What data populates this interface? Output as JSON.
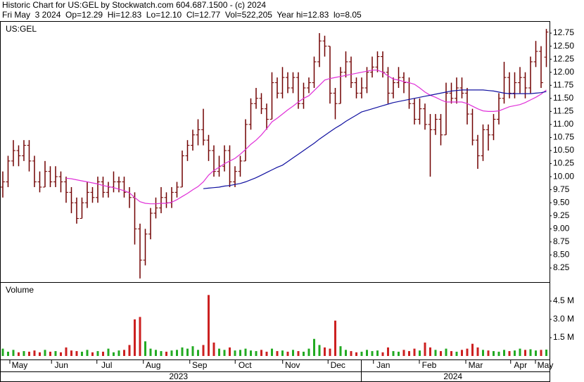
{
  "header": {
    "title": "Historic Chart for US:GEL by Stockwatch.com 604.687.1500 - (c) 2024",
    "info": "Fri May  3 2024  Op=12.29  Hi=12.83  Lo=12.10  Cl=12.77  Vol=522,205  Year hi=12.83  lo=8.05"
  },
  "chart_data": [
    {
      "type": "ohlc",
      "label": "US:GEL",
      "xlim": [
        -0.53,
        103.6
      ],
      "xticks": [
        {
          "value": 3.2,
          "label": "May"
        },
        {
          "value": 11.1,
          "label": "Jun"
        },
        {
          "value": 19.7,
          "label": "Jul"
        },
        {
          "value": 28.5,
          "label": "Aug"
        },
        {
          "value": 37.3,
          "label": "Sep"
        },
        {
          "value": 45.9,
          "label": "Oct"
        },
        {
          "value": 54.9,
          "label": "Nov"
        },
        {
          "value": 63.5,
          "label": "Dec"
        },
        {
          "value": 72.1,
          "label": "Jan"
        },
        {
          "value": 80.8,
          "label": "Feb"
        },
        {
          "value": 89.6,
          "label": "Mar"
        },
        {
          "value": 98.1,
          "label": "Apr"
        },
        {
          "value": 102.8,
          "label": "May"
        }
      ],
      "year_ticks": [
        {
          "value": 33.3,
          "label": "2023"
        },
        {
          "value": 85.3,
          "label": "2024"
        }
      ],
      "ylim": [
        7.98,
        12.98
      ],
      "yticks": [
        8.25,
        {
          "value": 8.5,
          "label": "8.50"
        },
        8.75,
        {
          "value": 9,
          "label": "9.00"
        },
        9.25,
        {
          "value": 9.5,
          "label": "9.50"
        },
        9.75,
        {
          "value": 10,
          "label": "10.00"
        },
        10.25,
        {
          "value": 10.5,
          "label": "10.50"
        },
        10.75,
        {
          "value": 11,
          "label": "11.00"
        },
        11.25,
        {
          "value": 11.5,
          "label": "11.50"
        },
        11.75,
        {
          "value": 12,
          "label": "12.00"
        },
        12.25,
        {
          "value": 12.5,
          "label": "12.50"
        },
        12.75
      ],
      "series": [
        {
          "color": "#700000",
          "ohlc": [
            [
              9.8,
              10.1,
              9.6,
              9.9
            ],
            [
              9.9,
              10.4,
              9.8,
              10.3
            ],
            [
              10.3,
              10.7,
              10.2,
              10.5
            ],
            [
              10.5,
              10.6,
              10.2,
              10.4
            ],
            [
              10.4,
              10.7,
              10.3,
              10.6
            ],
            [
              10.6,
              10.7,
              10.1,
              10.3
            ],
            [
              10.3,
              10.4,
              9.8,
              9.9
            ],
            [
              9.9,
              10.1,
              9.7,
              9.8
            ],
            [
              9.8,
              10.3,
              9.8,
              10.1
            ],
            [
              10.1,
              10.2,
              9.8,
              9.9
            ],
            [
              9.9,
              10.2,
              9.8,
              10.0
            ],
            [
              10.0,
              10.1,
              9.7,
              9.9
            ],
            [
              9.9,
              10.0,
              9.5,
              9.7
            ],
            [
              9.7,
              9.8,
              9.3,
              9.5
            ],
            [
              9.5,
              9.6,
              9.1,
              9.2
            ],
            [
              9.2,
              9.6,
              9.2,
              9.5
            ],
            [
              9.5,
              9.9,
              9.4,
              9.7
            ],
            [
              9.7,
              9.8,
              9.5,
              9.6
            ],
            [
              9.6,
              10.0,
              9.5,
              9.9
            ],
            [
              9.9,
              10.0,
              9.6,
              9.7
            ],
            [
              9.7,
              9.9,
              9.6,
              9.8
            ],
            [
              9.8,
              10.1,
              9.7,
              9.9
            ],
            [
              9.9,
              10.0,
              9.7,
              9.9
            ],
            [
              9.9,
              10.0,
              9.6,
              9.7
            ],
            [
              9.7,
              9.8,
              9.4,
              9.6
            ],
            [
              9.6,
              9.7,
              8.7,
              9.0
            ],
            [
              9.0,
              9.1,
              8.05,
              8.4
            ],
            [
              8.4,
              9.0,
              8.3,
              8.9
            ],
            [
              8.9,
              9.4,
              8.8,
              9.3
            ],
            [
              9.3,
              9.6,
              9.2,
              9.4
            ],
            [
              9.4,
              9.8,
              9.3,
              9.6
            ],
            [
              9.6,
              9.7,
              9.4,
              9.5
            ],
            [
              9.5,
              9.8,
              9.4,
              9.7
            ],
            [
              9.7,
              9.9,
              9.6,
              9.8
            ],
            [
              9.8,
              10.5,
              9.8,
              10.4
            ],
            [
              10.4,
              10.7,
              10.3,
              10.6
            ],
            [
              10.6,
              10.9,
              10.5,
              10.8
            ],
            [
              10.8,
              11.1,
              10.6,
              10.9
            ],
            [
              10.9,
              11.3,
              10.6,
              10.7
            ],
            [
              10.7,
              10.8,
              10.3,
              10.5
            ],
            [
              10.5,
              10.6,
              10.0,
              10.1
            ],
            [
              10.1,
              10.4,
              10.0,
              10.2
            ],
            [
              10.2,
              10.6,
              10.1,
              10.5
            ],
            [
              10.5,
              10.6,
              9.8,
              9.9
            ],
            [
              9.9,
              10.2,
              9.8,
              10.1
            ],
            [
              10.1,
              10.4,
              10.0,
              10.3
            ],
            [
              10.3,
              11.1,
              10.3,
              11.0
            ],
            [
              11.0,
              11.5,
              10.9,
              11.4
            ],
            [
              11.4,
              11.7,
              11.3,
              11.5
            ],
            [
              11.5,
              11.6,
              11.2,
              11.3
            ],
            [
              11.3,
              11.4,
              10.9,
              11.1
            ],
            [
              11.1,
              12.0,
              11.1,
              11.8
            ],
            [
              11.8,
              11.9,
              11.5,
              11.6
            ],
            [
              11.6,
              12.1,
              11.5,
              11.9
            ],
            [
              11.9,
              12.0,
              11.6,
              11.7
            ],
            [
              11.7,
              12.0,
              11.6,
              11.9
            ],
            [
              11.9,
              12.0,
              11.3,
              11.4
            ],
            [
              11.4,
              11.8,
              11.3,
              11.7
            ],
            [
              11.7,
              11.9,
              11.6,
              11.8
            ],
            [
              11.8,
              12.3,
              11.7,
              12.2
            ],
            [
              12.2,
              12.75,
              12.1,
              12.6
            ],
            [
              12.6,
              12.7,
              12.3,
              12.5
            ],
            [
              12.5,
              12.5,
              11.4,
              11.6
            ],
            [
              11.6,
              11.7,
              11.1,
              11.4
            ],
            [
              11.4,
              12.1,
              11.4,
              12.0
            ],
            [
              12.0,
              12.4,
              11.9,
              12.2
            ],
            [
              12.2,
              12.3,
              11.7,
              11.8
            ],
            [
              11.8,
              11.9,
              11.5,
              11.6
            ],
            [
              11.6,
              11.9,
              11.5,
              11.7
            ],
            [
              11.7,
              12.1,
              11.6,
              12.0
            ],
            [
              12.0,
              12.3,
              11.9,
              12.1
            ],
            [
              12.1,
              12.4,
              12.0,
              12.3
            ],
            [
              12.3,
              12.4,
              11.9,
              12.0
            ],
            [
              12.0,
              12.1,
              11.4,
              11.6
            ],
            [
              11.6,
              11.9,
              11.5,
              11.8
            ],
            [
              11.8,
              12.1,
              11.7,
              11.9
            ],
            [
              11.9,
              12.0,
              11.6,
              11.8
            ],
            [
              11.8,
              11.9,
              11.3,
              11.4
            ],
            [
              11.4,
              11.5,
              11.0,
              11.1
            ],
            [
              11.1,
              11.5,
              11.0,
              11.3
            ],
            [
              11.3,
              11.4,
              10.9,
              11.0
            ],
            [
              11.0,
              11.2,
              10.0,
              10.9
            ],
            [
              10.9,
              11.2,
              10.8,
              11.1
            ],
            [
              11.1,
              11.2,
              10.6,
              10.8
            ],
            [
              10.8,
              11.8,
              10.8,
              11.6
            ],
            [
              11.6,
              11.8,
              11.4,
              11.5
            ],
            [
              11.5,
              11.9,
              11.4,
              11.7
            ],
            [
              11.7,
              11.9,
              11.5,
              11.6
            ],
            [
              11.6,
              11.7,
              11.0,
              11.2
            ],
            [
              11.2,
              11.3,
              10.6,
              10.7
            ],
            [
              10.7,
              10.8,
              10.15,
              10.4
            ],
            [
              10.4,
              11.0,
              10.3,
              10.9
            ],
            [
              10.9,
              11.0,
              10.5,
              10.8
            ],
            [
              10.8,
              11.2,
              10.7,
              11.1
            ],
            [
              11.1,
              11.6,
              11.0,
              11.5
            ],
            [
              11.5,
              12.2,
              11.4,
              11.9
            ],
            [
              11.9,
              12.0,
              11.5,
              11.6
            ],
            [
              11.6,
              12.0,
              11.5,
              11.8
            ],
            [
              11.8,
              12.1,
              11.6,
              11.9
            ],
            [
              11.9,
              12.0,
              11.5,
              11.7
            ],
            [
              11.7,
              12.3,
              11.6,
              12.2
            ],
            [
              12.2,
              12.6,
              12.1,
              12.4
            ],
            [
              12.4,
              12.5,
              11.7,
              11.8
            ],
            [
              12.29,
              12.83,
              12.1,
              12.77
            ]
          ]
        },
        {
          "color": "#e030d8",
          "values": [
            null,
            null,
            null,
            null,
            null,
            null,
            null,
            null,
            null,
            null,
            null,
            null,
            9.97,
            9.96,
            9.94,
            9.92,
            9.9,
            9.88,
            9.86,
            9.83,
            9.81,
            9.79,
            9.76,
            9.73,
            9.69,
            9.6,
            9.52,
            9.49,
            9.48,
            9.48,
            9.49,
            9.49,
            9.51,
            9.56,
            9.62,
            9.68,
            9.75,
            9.81,
            9.9,
            10.03,
            10.12,
            10.18,
            10.25,
            10.3,
            10.35,
            10.43,
            10.52,
            10.62,
            10.7,
            10.8,
            10.92,
            11.05,
            11.12,
            11.2,
            11.28,
            11.35,
            11.43,
            11.5,
            11.55,
            11.65,
            11.75,
            11.85,
            11.88,
            11.9,
            11.92,
            11.94,
            11.96,
            11.98,
            12.0,
            12.02,
            12.04,
            12.04,
            12.0,
            11.93,
            11.87,
            11.85,
            11.82,
            11.8,
            11.77,
            11.7,
            11.62,
            11.56,
            11.52,
            11.47,
            11.43,
            11.43,
            11.43,
            11.43,
            11.4,
            11.35,
            11.3,
            11.26,
            11.25,
            11.25,
            11.26,
            11.3,
            11.34,
            11.36,
            11.38,
            11.42,
            11.47,
            11.52,
            11.58,
            11.66
          ]
        },
        {
          "color": "#1010a0",
          "values": [
            null,
            null,
            null,
            null,
            null,
            null,
            null,
            null,
            null,
            null,
            null,
            null,
            null,
            null,
            null,
            null,
            null,
            null,
            null,
            null,
            null,
            null,
            null,
            null,
            null,
            null,
            null,
            null,
            null,
            null,
            null,
            null,
            null,
            null,
            null,
            null,
            null,
            null,
            9.77,
            9.78,
            9.79,
            9.8,
            9.82,
            9.83,
            9.85,
            9.87,
            9.9,
            9.94,
            9.98,
            10.03,
            10.08,
            10.13,
            10.18,
            10.22,
            10.29,
            10.36,
            10.43,
            10.5,
            10.57,
            10.64,
            10.72,
            10.79,
            10.86,
            10.93,
            10.99,
            11.06,
            11.12,
            11.18,
            11.24,
            11.27,
            11.3,
            11.33,
            11.36,
            11.39,
            11.42,
            11.44,
            11.46,
            11.48,
            11.5,
            11.52,
            11.54,
            11.56,
            11.58,
            11.6,
            11.62,
            11.64,
            11.65,
            11.66,
            11.66,
            11.66,
            11.66,
            11.66,
            11.65,
            11.64,
            11.62,
            11.6,
            11.59,
            11.59,
            11.59,
            11.59,
            11.59,
            11.6,
            11.61,
            11.63
          ]
        }
      ]
    },
    {
      "type": "bar",
      "label": "Volume",
      "up_color": "#22aa22",
      "down_color": "#cc2020",
      "ylim": [
        0,
        6000000
      ],
      "yticks": [
        {
          "value": 1500000,
          "label": "1.5 M"
        },
        {
          "value": 3000000,
          "label": "3.0 M"
        },
        {
          "value": 4500000,
          "label": "4.5 M"
        }
      ],
      "values": [
        600000,
        350000,
        500000,
        300000,
        400000,
        350000,
        450000,
        300000,
        500000,
        350000,
        400000,
        300000,
        700000,
        450000,
        400000,
        350000,
        500000,
        300000,
        400000,
        350000,
        600000,
        300000,
        450000,
        500000,
        900000,
        3000000,
        3200000,
        1200000,
        600000,
        500000,
        400000,
        350000,
        450000,
        500000,
        700000,
        600000,
        800000,
        500000,
        900000,
        5000000,
        1100000,
        600000,
        500000,
        700000,
        450000,
        500000,
        600000,
        450000,
        400000,
        500000,
        350000,
        600000,
        400000,
        450000,
        350000,
        500000,
        400000,
        350000,
        600000,
        1400000,
        900000,
        700000,
        600000,
        2900000,
        800000,
        500000,
        400000,
        300000,
        350000,
        500000,
        400000,
        450000,
        300000,
        700000,
        400000,
        350000,
        500000,
        400000,
        600000,
        450000,
        1100000,
        700000,
        500000,
        400000,
        600000,
        400000,
        350000,
        500000,
        600000,
        1000000,
        700000,
        500000,
        450000,
        400000,
        350000,
        500000,
        400000,
        450000,
        600000,
        500000,
        550000,
        450000,
        500000,
        522205
      ]
    }
  ]
}
